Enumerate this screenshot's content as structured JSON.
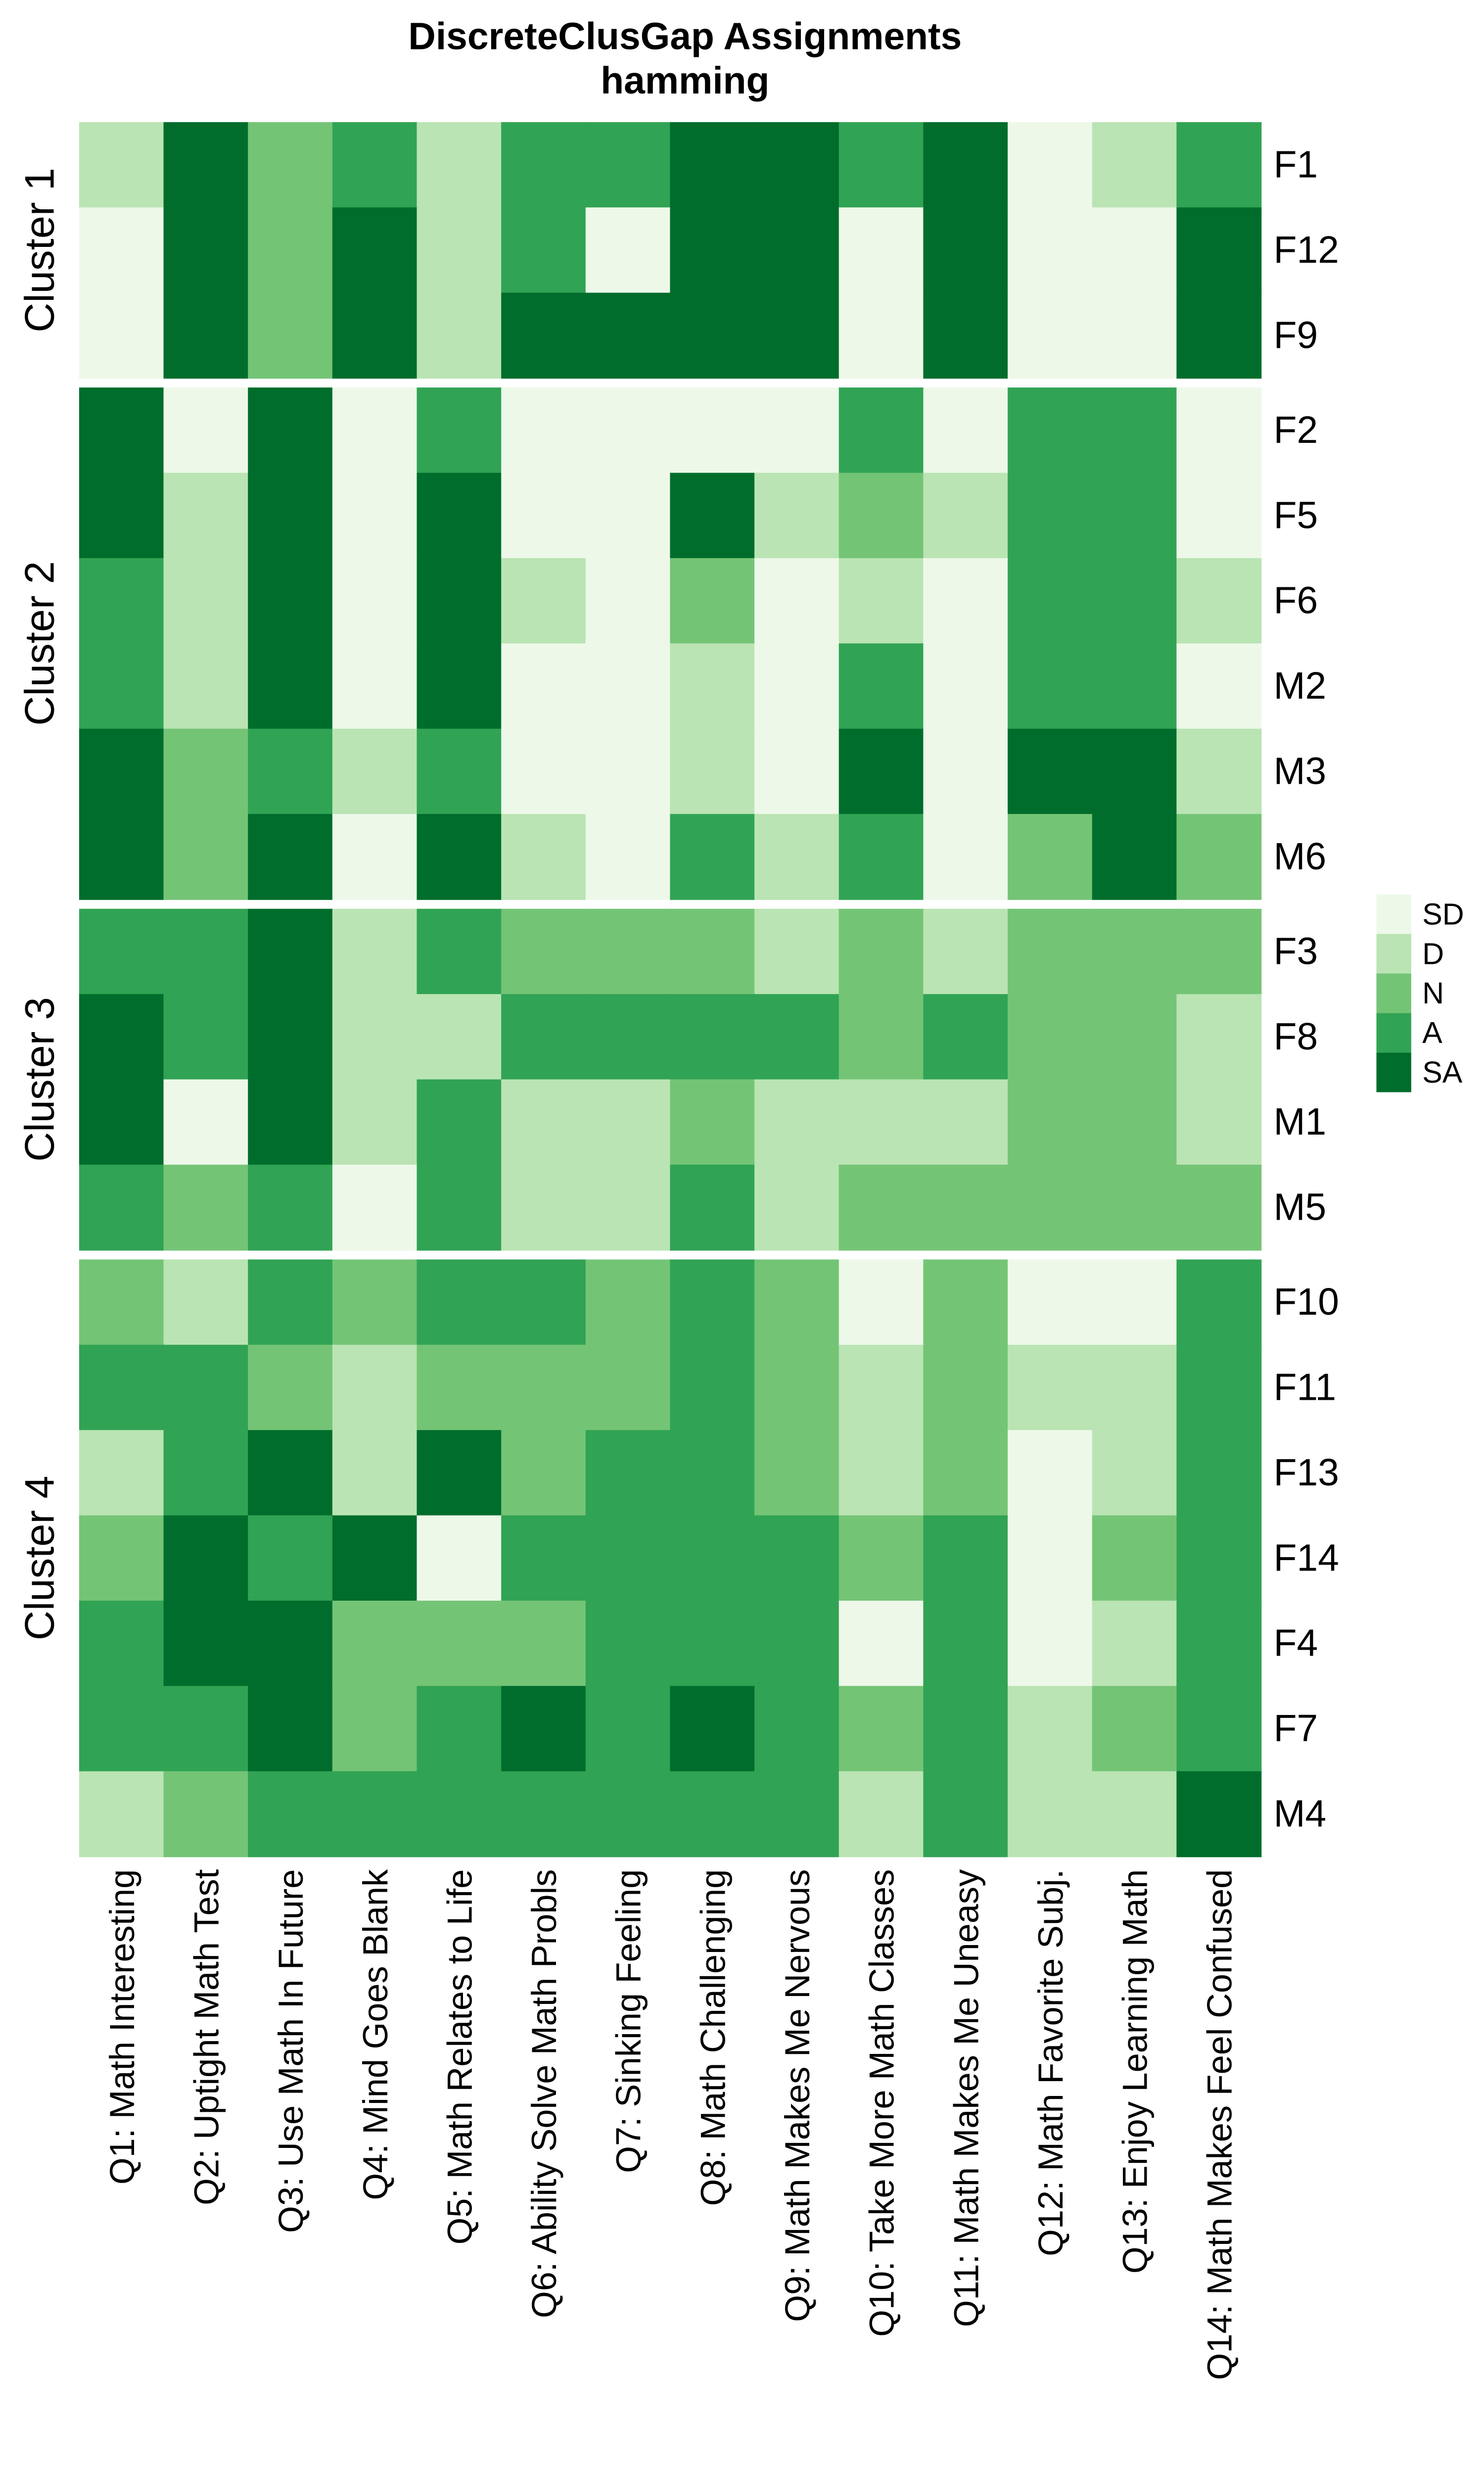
{
  "chart_data": {
    "type": "heatmap",
    "title": "DiscreteClusGap Assignments",
    "subtitle": "hamming",
    "columns": [
      "Q1: Math Interesting",
      "Q2: Uptight Math Test",
      "Q3: Use Math In Future",
      "Q4: Mind Goes Blank",
      "Q5: Math Relates to Life",
      "Q6: Ability Solve Math Probls",
      "Q7: Sinking Feeling",
      "Q8: Math Challenging",
      "Q9: Math Makes Me Nervous",
      "Q10: Take More Math Classes",
      "Q11: Math Makes Me Uneasy",
      "Q12: Math Favorite Subj.",
      "Q13: Enjoy Learning Math",
      "Q14: Math Makes Feel Confused"
    ],
    "legend": {
      "position": "right",
      "levels": [
        "SD",
        "D",
        "N",
        "A",
        "SA"
      ],
      "colors": {
        "SD": "#EDF8E9",
        "D": "#BAE4B3",
        "N": "#74C476",
        "A": "#31A354",
        "SA": "#006D2C"
      }
    },
    "clusters": [
      {
        "label": "Cluster 1",
        "rows": [
          {
            "id": "F1",
            "values": [
              "D",
              "SA",
              "N",
              "A",
              "D",
              "A",
              "A",
              "SA",
              "SA",
              "A",
              "SA",
              "SD",
              "D",
              "A"
            ]
          },
          {
            "id": "F12",
            "values": [
              "SD",
              "SA",
              "N",
              "SA",
              "D",
              "A",
              "SD",
              "SA",
              "SA",
              "SD",
              "SA",
              "SD",
              "SD",
              "SA"
            ]
          },
          {
            "id": "F9",
            "values": [
              "SD",
              "SA",
              "N",
              "SA",
              "D",
              "SA",
              "SA",
              "SA",
              "SA",
              "SD",
              "SA",
              "SD",
              "SD",
              "SA"
            ]
          }
        ]
      },
      {
        "label": "Cluster 2",
        "rows": [
          {
            "id": "F2",
            "values": [
              "SA",
              "SD",
              "SA",
              "SD",
              "A",
              "SD",
              "SD",
              "SD",
              "SD",
              "A",
              "SD",
              "A",
              "A",
              "SD"
            ]
          },
          {
            "id": "F5",
            "values": [
              "SA",
              "D",
              "SA",
              "SD",
              "SA",
              "SD",
              "SD",
              "SA",
              "D",
              "N",
              "D",
              "A",
              "A",
              "SD"
            ]
          },
          {
            "id": "F6",
            "values": [
              "A",
              "D",
              "SA",
              "SD",
              "SA",
              "D",
              "SD",
              "N",
              "SD",
              "D",
              "SD",
              "A",
              "A",
              "D"
            ]
          },
          {
            "id": "M2",
            "values": [
              "A",
              "D",
              "SA",
              "SD",
              "SA",
              "SD",
              "SD",
              "D",
              "SD",
              "A",
              "SD",
              "A",
              "A",
              "SD"
            ]
          },
          {
            "id": "M3",
            "values": [
              "SA",
              "N",
              "A",
              "D",
              "A",
              "SD",
              "SD",
              "D",
              "SD",
              "SA",
              "SD",
              "SA",
              "SA",
              "D"
            ]
          },
          {
            "id": "M6",
            "values": [
              "SA",
              "N",
              "SA",
              "SD",
              "SA",
              "D",
              "SD",
              "A",
              "D",
              "A",
              "SD",
              "N",
              "SA",
              "N"
            ]
          }
        ]
      },
      {
        "label": "Cluster 3",
        "rows": [
          {
            "id": "F3",
            "values": [
              "A",
              "A",
              "SA",
              "D",
              "A",
              "N",
              "N",
              "N",
              "D",
              "N",
              "D",
              "N",
              "N",
              "N"
            ]
          },
          {
            "id": "F8",
            "values": [
              "SA",
              "A",
              "SA",
              "D",
              "D",
              "A",
              "A",
              "A",
              "A",
              "N",
              "A",
              "N",
              "N",
              "D"
            ]
          },
          {
            "id": "M1",
            "values": [
              "SA",
              "SD",
              "SA",
              "D",
              "A",
              "D",
              "D",
              "N",
              "D",
              "D",
              "D",
              "N",
              "N",
              "D"
            ]
          },
          {
            "id": "M5",
            "values": [
              "A",
              "N",
              "A",
              "SD",
              "A",
              "D",
              "D",
              "A",
              "D",
              "N",
              "N",
              "N",
              "N",
              "N"
            ]
          }
        ]
      },
      {
        "label": "Cluster 4",
        "rows": [
          {
            "id": "F10",
            "values": [
              "N",
              "D",
              "A",
              "N",
              "A",
              "A",
              "N",
              "A",
              "N",
              "SD",
              "N",
              "SD",
              "SD",
              "A"
            ]
          },
          {
            "id": "F11",
            "values": [
              "A",
              "A",
              "N",
              "D",
              "N",
              "N",
              "N",
              "A",
              "N",
              "D",
              "N",
              "D",
              "D",
              "A"
            ]
          },
          {
            "id": "F13",
            "values": [
              "D",
              "A",
              "SA",
              "D",
              "SA",
              "N",
              "A",
              "A",
              "N",
              "D",
              "N",
              "SD",
              "D",
              "A"
            ]
          },
          {
            "id": "F14",
            "values": [
              "N",
              "SA",
              "A",
              "SA",
              "SD",
              "A",
              "A",
              "A",
              "A",
              "N",
              "A",
              "SD",
              "N",
              "A"
            ]
          },
          {
            "id": "F4",
            "values": [
              "A",
              "SA",
              "SA",
              "N",
              "N",
              "N",
              "A",
              "A",
              "A",
              "SD",
              "A",
              "SD",
              "D",
              "A"
            ]
          },
          {
            "id": "F7",
            "values": [
              "A",
              "A",
              "SA",
              "N",
              "A",
              "SA",
              "A",
              "SA",
              "A",
              "N",
              "A",
              "D",
              "N",
              "A"
            ]
          },
          {
            "id": "M4",
            "values": [
              "D",
              "N",
              "A",
              "A",
              "A",
              "A",
              "A",
              "A",
              "A",
              "D",
              "A",
              "D",
              "D",
              "SA"
            ]
          }
        ]
      }
    ]
  }
}
